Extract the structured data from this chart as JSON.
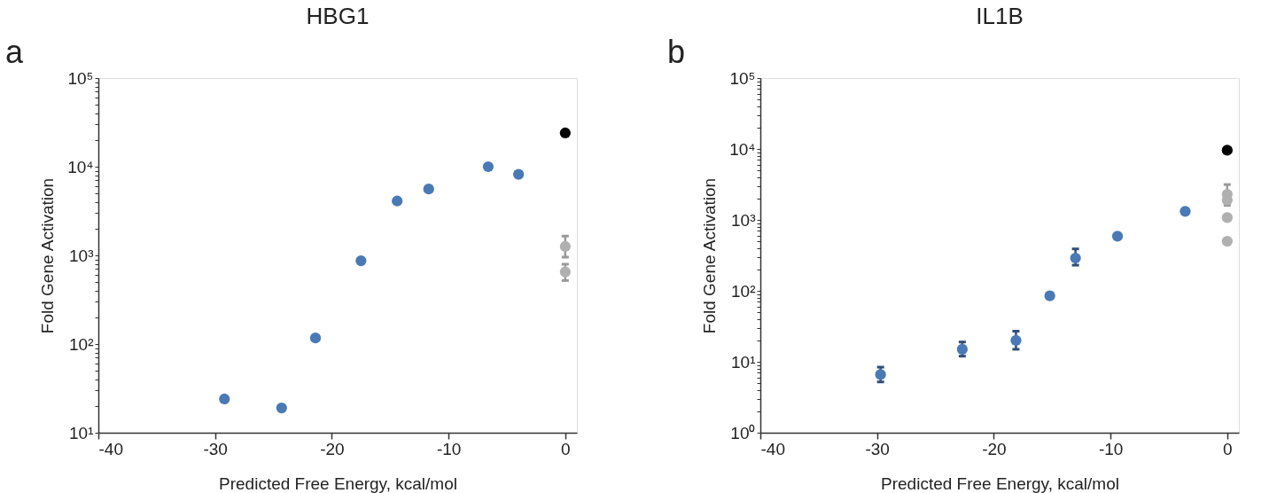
{
  "chart_data": [
    {
      "type": "scatter",
      "title": "HBG1",
      "xlabel": "Predicted Free Energy, kcal/mol",
      "ylabel": "Fold Gene Activation",
      "annotations": [
        "a"
      ],
      "log": "y",
      "grid": false,
      "marker": "circle",
      "xlim": [
        -40,
        1
      ],
      "xticks": [
        -40,
        -30,
        -20,
        -10,
        0
      ],
      "ylim": [
        10,
        100000
      ],
      "yticks": [
        {
          "value": 10,
          "label": "10¹"
        },
        {
          "value": 20,
          "label": null
        },
        {
          "value": 30,
          "label": null
        },
        {
          "value": 40,
          "label": null
        },
        {
          "value": 50,
          "label": null
        },
        {
          "value": 60,
          "label": null
        },
        {
          "value": 70,
          "label": null
        },
        {
          "value": 80,
          "label": null
        },
        {
          "value": 90,
          "label": null
        },
        {
          "value": 100,
          "label": "10²"
        },
        {
          "value": 200,
          "label": null
        },
        {
          "value": 300,
          "label": null
        },
        {
          "value": 400,
          "label": null
        },
        {
          "value": 500,
          "label": null
        },
        {
          "value": 600,
          "label": null
        },
        {
          "value": 700,
          "label": null
        },
        {
          "value": 800,
          "label": null
        },
        {
          "value": 900,
          "label": null
        },
        {
          "value": 1000,
          "label": "10³"
        },
        {
          "value": 2000,
          "label": null
        },
        {
          "value": 3000,
          "label": null
        },
        {
          "value": 4000,
          "label": null
        },
        {
          "value": 5000,
          "label": null
        },
        {
          "value": 6000,
          "label": null
        },
        {
          "value": 7000,
          "label": null
        },
        {
          "value": 8000,
          "label": null
        },
        {
          "value": 9000,
          "label": null
        },
        {
          "value": 10000,
          "label": "10⁴"
        },
        {
          "value": 20000,
          "label": null
        },
        {
          "value": 30000,
          "label": null
        },
        {
          "value": 40000,
          "label": null
        },
        {
          "value": 50000,
          "label": null
        },
        {
          "value": 60000,
          "label": null
        },
        {
          "value": 70000,
          "label": null
        },
        {
          "value": 80000,
          "label": null
        },
        {
          "value": 90000,
          "label": null
        },
        {
          "value": 100000,
          "label": "10⁵"
        }
      ],
      "series": [
        {
          "color": "#4a7ab5",
          "x": [
            -29.2,
            -24.3,
            -21.4,
            -17.5,
            -14.4,
            -11.7,
            -6.6,
            -4.0
          ],
          "values": [
            24,
            19,
            117,
            870,
            4100,
            5600,
            10000,
            8200
          ]
        },
        {
          "color": "#000000",
          "x": [
            0
          ],
          "values": [
            24000
          ]
        },
        {
          "color": "#b0b0b0",
          "x": [
            0,
            0
          ],
          "values": [
            1260,
            650
          ],
          "errors": [
            [
              955,
              1650
            ],
            [
              520,
              795
            ]
          ]
        }
      ]
    },
    {
      "type": "scatter",
      "title": "IL1B",
      "xlabel": "Predicted Free Energy, kcal/mol",
      "ylabel": "Fold Gene Activation",
      "annotations": [
        "b"
      ],
      "log": "y",
      "grid": false,
      "marker": "circle",
      "xlim": [
        -40,
        1
      ],
      "xticks": [
        -40,
        -30,
        -20,
        -10,
        0
      ],
      "ylim": [
        1,
        100000
      ],
      "yticks": [
        {
          "value": 1,
          "label": "10⁰"
        },
        {
          "value": 2,
          "label": null
        },
        {
          "value": 3,
          "label": null
        },
        {
          "value": 4,
          "label": null
        },
        {
          "value": 5,
          "label": null
        },
        {
          "value": 6,
          "label": null
        },
        {
          "value": 7,
          "label": null
        },
        {
          "value": 8,
          "label": null
        },
        {
          "value": 9,
          "label": null
        },
        {
          "value": 10,
          "label": "10¹"
        },
        {
          "value": 20,
          "label": null
        },
        {
          "value": 30,
          "label": null
        },
        {
          "value": 40,
          "label": null
        },
        {
          "value": 50,
          "label": null
        },
        {
          "value": 60,
          "label": null
        },
        {
          "value": 70,
          "label": null
        },
        {
          "value": 80,
          "label": null
        },
        {
          "value": 90,
          "label": null
        },
        {
          "value": 100,
          "label": "10²"
        },
        {
          "value": 200,
          "label": null
        },
        {
          "value": 300,
          "label": null
        },
        {
          "value": 400,
          "label": null
        },
        {
          "value": 500,
          "label": null
        },
        {
          "value": 600,
          "label": null
        },
        {
          "value": 700,
          "label": null
        },
        {
          "value": 800,
          "label": null
        },
        {
          "value": 900,
          "label": null
        },
        {
          "value": 1000,
          "label": "10³"
        },
        {
          "value": 2000,
          "label": null
        },
        {
          "value": 3000,
          "label": null
        },
        {
          "value": 4000,
          "label": null
        },
        {
          "value": 5000,
          "label": null
        },
        {
          "value": 6000,
          "label": null
        },
        {
          "value": 7000,
          "label": null
        },
        {
          "value": 8000,
          "label": null
        },
        {
          "value": 9000,
          "label": null
        },
        {
          "value": 10000,
          "label": "10⁴"
        },
        {
          "value": 20000,
          "label": null
        },
        {
          "value": 30000,
          "label": null
        },
        {
          "value": 40000,
          "label": null
        },
        {
          "value": 50000,
          "label": null
        },
        {
          "value": 60000,
          "label": null
        },
        {
          "value": 70000,
          "label": null
        },
        {
          "value": 80000,
          "label": null
        },
        {
          "value": 90000,
          "label": null
        },
        {
          "value": 100000,
          "label": "10⁵"
        }
      ],
      "series": [
        {
          "color": "#4a7ab5",
          "x": [
            -29.7,
            -22.7,
            -18.1,
            -15.2,
            -13.0,
            -9.4,
            -3.6
          ],
          "values": [
            6.6,
            15,
            20,
            85,
            290,
            590,
            1320
          ],
          "errors": [
            [
              5.2,
              8.4
            ],
            [
              12,
              19
            ],
            [
              15,
              27
            ],
            null,
            [
              230,
              390
            ],
            null,
            null
          ]
        },
        {
          "color": "#000000",
          "x": [
            0
          ],
          "values": [
            9600
          ]
        },
        {
          "color": "#b0b0b0",
          "x": [
            0,
            0,
            0,
            0
          ],
          "values": [
            2300,
            1900,
            1080,
            500
          ],
          "errors": [
            [
              1600,
              3150
            ],
            null,
            null,
            null
          ]
        }
      ]
    }
  ]
}
